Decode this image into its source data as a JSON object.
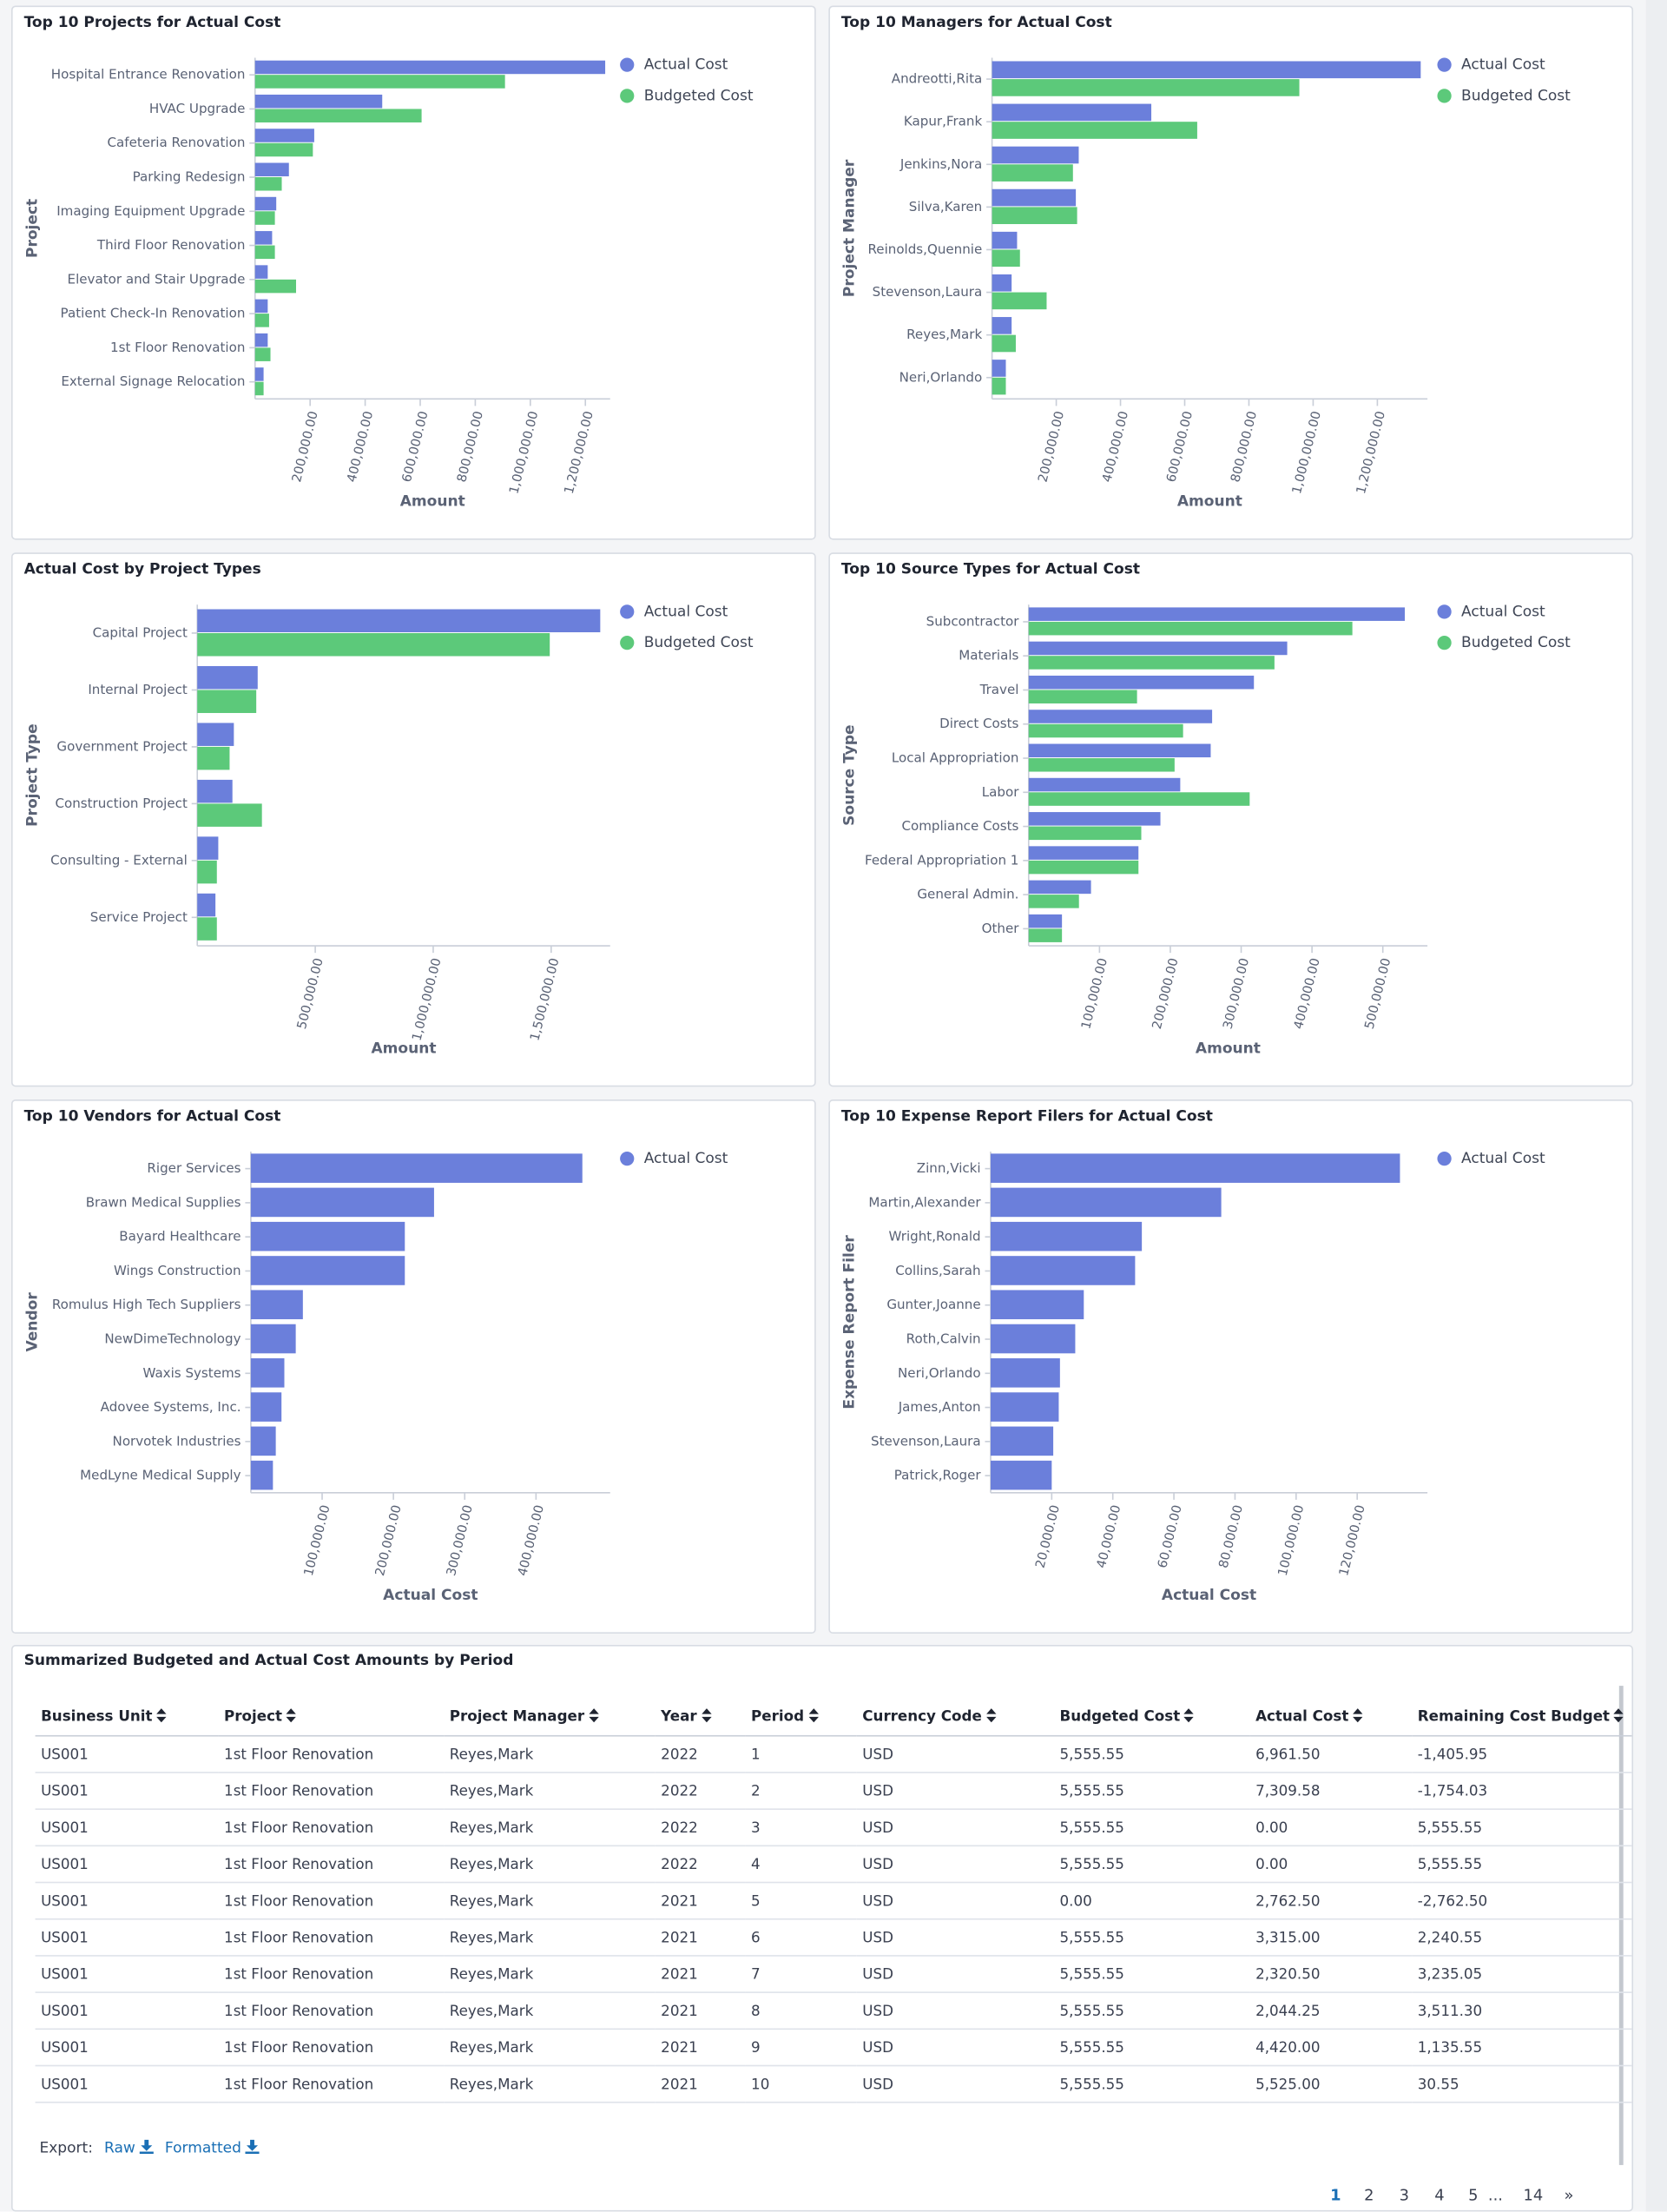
{
  "chart_data": [
    {
      "type": "hbar",
      "title": "Top 10 Projects for Actual Cost",
      "x_label": "Amount",
      "y_label": "Project",
      "categories": [
        "Hospital Entrance Renovation",
        "HVAC Upgrade",
        "Cafeteria Renovation",
        "Parking Redesign",
        "Imaging Equipment Upgrade",
        "Third Floor Renovation",
        "Elevator and Stair Upgrade",
        "Patient Check-In Renovation",
        "1st Floor Renovation",
        "External Signage Relocation"
      ],
      "series": [
        {
          "name": "Actual Cost",
          "color": "#6b7fdb",
          "values": [
            1272000,
            462000,
            215000,
            123000,
            77000,
            62000,
            46000,
            46000,
            46000,
            31000
          ]
        },
        {
          "name": "Budgeted Cost",
          "color": "#5cc97a",
          "values": [
            908000,
            605000,
            210000,
            97000,
            72000,
            72000,
            149000,
            51000,
            56000,
            31000
          ]
        }
      ],
      "xlim": [
        0,
        1290000
      ],
      "xticks": [
        {
          "value": 200000,
          "label": "200,000.00"
        },
        {
          "value": 400000,
          "label": "400,000.00"
        },
        {
          "value": 600000,
          "label": "600,000.00"
        },
        {
          "value": 800000,
          "label": "800,000.00"
        },
        {
          "value": 1000000,
          "label": "1,000,000.00"
        },
        {
          "value": 1200000,
          "label": "1,200,000.00"
        }
      ]
    },
    {
      "type": "hbar",
      "title": "Top 10 Managers for Actual Cost",
      "x_label": "Amount",
      "y_label": "Project Manager",
      "categories": [
        "Andreotti,Rita",
        "Kapur,Frank",
        "Jenkins,Nora",
        "Silva,Karen",
        "Reinolds,Quennie",
        "Stevenson,Laura",
        "Reyes,Mark",
        "Neri,Orlando"
      ],
      "series": [
        {
          "name": "Actual Cost",
          "color": "#6b7fdb",
          "values": [
            1335000,
            496000,
            270000,
            261000,
            78000,
            61000,
            61000,
            43000
          ]
        },
        {
          "name": "Budgeted Cost",
          "color": "#5cc97a",
          "values": [
            957000,
            639000,
            252000,
            265000,
            87000,
            170000,
            74000,
            43000
          ]
        }
      ],
      "xlim": [
        0,
        1356000
      ],
      "xticks": [
        {
          "value": 200000,
          "label": "200,000.00"
        },
        {
          "value": 400000,
          "label": "400,000.00"
        },
        {
          "value": 600000,
          "label": "600,000.00"
        },
        {
          "value": 800000,
          "label": "800,000.00"
        },
        {
          "value": 1000000,
          "label": "1,000,000.00"
        },
        {
          "value": 1200000,
          "label": "1,200,000.00"
        }
      ]
    },
    {
      "type": "hbar",
      "title": "Actual Cost by Project Types",
      "x_label": "Amount",
      "y_label": "Project Type",
      "categories": [
        "Capital Project",
        "Internal Project",
        "Government Project",
        "Construction Project",
        "Consulting - External",
        "Service Project"
      ],
      "series": [
        {
          "name": "Actual Cost",
          "color": "#6b7fdb",
          "values": [
            1708000,
            256000,
            155000,
            149000,
            89000,
            77000
          ]
        },
        {
          "name": "Budgeted Cost",
          "color": "#5cc97a",
          "values": [
            1494000,
            250000,
            137000,
            274000,
            83000,
            83000
          ]
        }
      ],
      "xlim": [
        0,
        1750000
      ],
      "xticks": [
        {
          "value": 500000,
          "label": "500,000.00"
        },
        {
          "value": 1000000,
          "label": "1,000,000.00"
        },
        {
          "value": 1500000,
          "label": "1,500,000.00"
        }
      ]
    },
    {
      "type": "hbar",
      "title": "Top 10 Source Types for Actual Cost",
      "x_label": "Amount",
      "y_label": "Source Type",
      "categories": [
        "Subcontractor",
        "Materials",
        "Travel",
        "Direct Costs",
        "Local Appropriation",
        "Labor",
        "Compliance Costs",
        "Federal Appropriation 1",
        "General Admin.",
        "Other"
      ],
      "series": [
        {
          "name": "Actual Cost",
          "color": "#6b7fdb",
          "values": [
            531000,
            365000,
            318000,
            259000,
            257000,
            214000,
            186000,
            155000,
            88000,
            47000
          ]
        },
        {
          "name": "Budgeted Cost",
          "color": "#5cc97a",
          "values": [
            457000,
            347000,
            153000,
            218000,
            206000,
            312000,
            159000,
            155000,
            71000,
            47000
          ]
        }
      ],
      "xlim": [
        0,
        563000
      ],
      "xticks": [
        {
          "value": 100000,
          "label": "100,000.00"
        },
        {
          "value": 200000,
          "label": "200,000.00"
        },
        {
          "value": 300000,
          "label": "300,000.00"
        },
        {
          "value": 400000,
          "label": "400,000.00"
        },
        {
          "value": 500000,
          "label": "500,000.00"
        }
      ]
    },
    {
      "type": "hbar",
      "title": "Top 10 Vendors for Actual Cost",
      "x_label": "Actual Cost",
      "y_label": "Vendor",
      "categories": [
        "Riger Services",
        "Brawn Medical Supplies",
        "Bayard Healthcare",
        "Wings Construction",
        "Romulus High Tech Suppliers",
        "NewDimeTechnology",
        "Waxis Systems",
        "Adovee Systems, Inc.",
        "Norvotek Industries",
        "MedLyne Medical Supply"
      ],
      "series": [
        {
          "name": "Actual Cost",
          "color": "#6b7fdb",
          "values": [
            465000,
            257000,
            216000,
            216000,
            73000,
            63000,
            47000,
            43000,
            35000,
            31000
          ]
        }
      ],
      "xlim": [
        0,
        504000
      ],
      "xticks": [
        {
          "value": 100000,
          "label": "100,000.00"
        },
        {
          "value": 200000,
          "label": "200,000.00"
        },
        {
          "value": 300000,
          "label": "300,000.00"
        },
        {
          "value": 400000,
          "label": "400,000.00"
        }
      ]
    },
    {
      "type": "hbar",
      "title": "Top 10 Expense Report Filers for Actual Cost",
      "x_label": "Actual Cost",
      "y_label": "Expense Report Filer",
      "categories": [
        "Zinn,Vicki",
        "Martin,Alexander",
        "Wright,Ronald",
        "Collins,Sarah",
        "Gunter,Joanne",
        "Roth,Calvin",
        "Neri,Orlando",
        "James,Anton",
        "Stevenson,Laura",
        "Patrick,Roger"
      ],
      "series": [
        {
          "name": "Actual Cost",
          "color": "#6b7fdb",
          "values": [
            134000,
            75500,
            49500,
            47300,
            30500,
            27700,
            22700,
            22300,
            20500,
            20000
          ]
        }
      ],
      "xlim": [
        0,
        143000
      ],
      "xticks": [
        {
          "value": 20000,
          "label": "20,000.00"
        },
        {
          "value": 40000,
          "label": "40,000.00"
        },
        {
          "value": 60000,
          "label": "60,000.00"
        },
        {
          "value": 80000,
          "label": "80,000.00"
        },
        {
          "value": 100000,
          "label": "100,000.00"
        },
        {
          "value": 120000,
          "label": "120,000.00"
        }
      ]
    }
  ],
  "table": {
    "title": "Summarized Budgeted and Actual Cost Amounts by Period",
    "columns": [
      "Business Unit",
      "Project",
      "Project Manager",
      "Year",
      "Period",
      "Currency Code",
      "Budgeted Cost",
      "Actual Cost",
      "Remaining Cost Budget"
    ],
    "rows": [
      [
        "US001",
        "1st Floor Renovation",
        "Reyes,Mark",
        "2022",
        "1",
        "USD",
        "5,555.55",
        "6,961.50",
        "-1,405.95"
      ],
      [
        "US001",
        "1st Floor Renovation",
        "Reyes,Mark",
        "2022",
        "2",
        "USD",
        "5,555.55",
        "7,309.58",
        "-1,754.03"
      ],
      [
        "US001",
        "1st Floor Renovation",
        "Reyes,Mark",
        "2022",
        "3",
        "USD",
        "5,555.55",
        "0.00",
        "5,555.55"
      ],
      [
        "US001",
        "1st Floor Renovation",
        "Reyes,Mark",
        "2022",
        "4",
        "USD",
        "5,555.55",
        "0.00",
        "5,555.55"
      ],
      [
        "US001",
        "1st Floor Renovation",
        "Reyes,Mark",
        "2021",
        "5",
        "USD",
        "0.00",
        "2,762.50",
        "-2,762.50"
      ],
      [
        "US001",
        "1st Floor Renovation",
        "Reyes,Mark",
        "2021",
        "6",
        "USD",
        "5,555.55",
        "3,315.00",
        "2,240.55"
      ],
      [
        "US001",
        "1st Floor Renovation",
        "Reyes,Mark",
        "2021",
        "7",
        "USD",
        "5,555.55",
        "2,320.50",
        "3,235.05"
      ],
      [
        "US001",
        "1st Floor Renovation",
        "Reyes,Mark",
        "2021",
        "8",
        "USD",
        "5,555.55",
        "2,044.25",
        "3,511.30"
      ],
      [
        "US001",
        "1st Floor Renovation",
        "Reyes,Mark",
        "2021",
        "9",
        "USD",
        "5,555.55",
        "4,420.00",
        "1,135.55"
      ],
      [
        "US001",
        "1st Floor Renovation",
        "Reyes,Mark",
        "2021",
        "10",
        "USD",
        "5,555.55",
        "5,525.00",
        "30.55"
      ]
    ]
  },
  "export": {
    "label": "Export:",
    "links": [
      "Raw",
      "Formatted"
    ]
  },
  "pagination": [
    "1",
    "2",
    "3",
    "4",
    "5",
    "...",
    "14",
    "»"
  ]
}
